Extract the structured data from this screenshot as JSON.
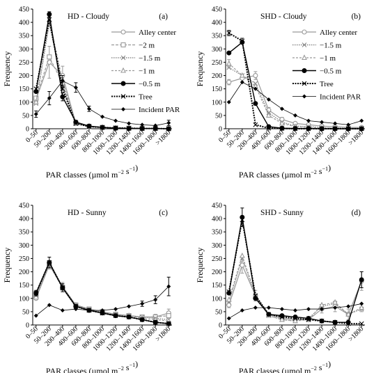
{
  "figure": {
    "xlabel_main": "PAR classes (µmol m",
    "xlabel_sup1": "−2",
    "xlabel_mid": " s",
    "xlabel_sup2": "−1",
    "xlabel_end": ")",
    "ylabel": "Frequency"
  },
  "categories": [
    "0–50",
    "50–200",
    "200–400",
    "400–600",
    "600–800",
    "800–1000",
    "1000–1200",
    "1200–1400",
    "1400–1600",
    "1600–1800",
    ">1800"
  ],
  "yticks": [
    "0",
    "50",
    "100",
    "150",
    "200",
    "250",
    "300",
    "350",
    "400",
    "450"
  ],
  "series_styles": {
    "alley": {
      "color": "#999999",
      "dash": "",
      "marker": "circle-open",
      "width": 1.2
    },
    "m2": {
      "color": "#999999",
      "dash": "4,2",
      "marker": "square-open",
      "width": 1.2
    },
    "m15": {
      "color": "#888888",
      "dash": "1.5,1.5",
      "marker": "x",
      "width": 1.4
    },
    "m1": {
      "color": "#999999",
      "dash": "3,2",
      "marker": "triangle-open",
      "width": 1.2
    },
    "m05": {
      "color": "#000000",
      "dash": "",
      "marker": "circle-filled",
      "width": 1.4
    },
    "tree": {
      "color": "#000000",
      "dash": "2,1.5",
      "marker": "x",
      "width": 2.0
    },
    "incident": {
      "color": "#000000",
      "dash": "",
      "marker": "diamond-filled",
      "width": 0.8
    }
  },
  "chart_data": [
    {
      "type": "line",
      "title": "HD - Cloudy",
      "letter": "(a)",
      "ylabel": "Frequency",
      "xlabel": "PAR classes (µmol m−2 s−1)",
      "ylim": [
        0,
        450
      ],
      "legend": {
        "placement": "right",
        "entries": [
          {
            "key": "alley",
            "label": "Alley center"
          },
          {
            "key": "m2",
            "label": "−2 m"
          },
          {
            "key": "m15",
            "label": "−1.5 m"
          },
          {
            "key": "m1",
            "label": "−1 m"
          },
          {
            "key": "m05",
            "label": "−0.5 m"
          },
          {
            "key": "tree",
            "label": "Tree"
          },
          {
            "key": "incident",
            "label": "Incident PAR"
          }
        ]
      },
      "series": [
        {
          "key": "alley",
          "values": [
            110,
            250,
            200,
            20,
            8,
            5,
            3,
            2,
            1,
            1,
            0
          ],
          "errors": [
            0,
            60,
            35,
            0,
            0,
            0,
            0,
            0,
            0,
            0,
            0
          ]
        },
        {
          "key": "m2",
          "values": [
            115,
            270,
            170,
            20,
            8,
            5,
            3,
            2,
            1,
            1,
            0
          ],
          "errors": [
            0,
            0,
            0,
            0,
            0,
            0,
            0,
            0,
            0,
            0,
            0
          ]
        },
        {
          "key": "m15",
          "values": [
            95,
            395,
            160,
            25,
            10,
            5,
            3,
            2,
            1,
            1,
            0
          ],
          "errors": [
            0,
            0,
            0,
            0,
            0,
            0,
            0,
            0,
            0,
            0,
            0
          ]
        },
        {
          "key": "m1",
          "values": [
            100,
            410,
            180,
            22,
            8,
            5,
            3,
            2,
            1,
            1,
            0
          ],
          "errors": [
            0,
            0,
            0,
            0,
            0,
            0,
            0,
            0,
            0,
            0,
            0
          ]
        },
        {
          "key": "m05",
          "values": [
            140,
            430,
            120,
            25,
            10,
            5,
            2,
            1,
            1,
            1,
            0
          ],
          "errors": [
            0,
            10,
            15,
            0,
            0,
            0,
            0,
            0,
            0,
            0,
            0
          ]
        },
        {
          "key": "tree",
          "values": [
            150,
            410,
            150,
            20,
            8,
            5,
            3,
            2,
            1,
            1,
            0
          ],
          "errors": [
            0,
            0,
            0,
            0,
            0,
            0,
            0,
            0,
            0,
            0,
            0
          ]
        },
        {
          "key": "incident",
          "values": [
            55,
            115,
            180,
            155,
            75,
            45,
            30,
            20,
            15,
            12,
            22
          ],
          "errors": [
            12,
            25,
            20,
            18,
            10,
            0,
            0,
            0,
            0,
            0,
            10
          ]
        }
      ]
    },
    {
      "type": "line",
      "title": "SHD - Cloudy",
      "letter": "(b)",
      "ylabel": "Frequency",
      "xlabel": "PAR classes (µmol m−2 s−1)",
      "ylim": [
        0,
        450
      ],
      "legend": {
        "placement": "right",
        "entries": [
          {
            "key": "alley",
            "label": "Alley center"
          },
          {
            "key": "m15",
            "label": "−1.5 m"
          },
          {
            "key": "m1",
            "label": "−1 m"
          },
          {
            "key": "m05",
            "label": "−0.5 m"
          },
          {
            "key": "tree",
            "label": "Tree"
          },
          {
            "key": "incident",
            "label": "Incident PAR"
          }
        ]
      },
      "series": [
        {
          "key": "alley",
          "values": [
            175,
            190,
            200,
            70,
            35,
            20,
            15,
            10,
            8,
            5,
            5
          ],
          "errors": [
            10,
            15,
            15,
            10,
            8,
            0,
            0,
            0,
            0,
            0,
            0
          ]
        },
        {
          "key": "m15",
          "values": [
            230,
            200,
            170,
            60,
            25,
            10,
            8,
            5,
            3,
            2,
            2
          ],
          "errors": [
            0,
            0,
            0,
            0,
            0,
            0,
            0,
            0,
            0,
            0,
            0
          ]
        },
        {
          "key": "m1",
          "values": [
            245,
            200,
            160,
            50,
            20,
            8,
            5,
            3,
            2,
            1,
            1
          ],
          "errors": [
            15,
            0,
            0,
            0,
            0,
            0,
            0,
            0,
            0,
            0,
            0
          ]
        },
        {
          "key": "m05",
          "values": [
            285,
            325,
            95,
            8,
            2,
            1,
            1,
            0,
            0,
            0,
            0
          ],
          "errors": [
            0,
            0,
            0,
            0,
            0,
            0,
            0,
            0,
            0,
            0,
            0
          ]
        },
        {
          "key": "tree",
          "values": [
            360,
            330,
            15,
            2,
            1,
            0,
            0,
            0,
            0,
            0,
            0
          ],
          "errors": [
            10,
            10,
            0,
            0,
            0,
            0,
            0,
            0,
            0,
            0,
            0
          ]
        },
        {
          "key": "incident",
          "values": [
            100,
            175,
            150,
            110,
            75,
            50,
            30,
            25,
            20,
            15,
            30
          ],
          "errors": [
            0,
            0,
            0,
            0,
            0,
            0,
            0,
            0,
            0,
            0,
            0
          ]
        }
      ]
    },
    {
      "type": "line",
      "title": "HD - Sunny",
      "letter": "(c)",
      "ylabel": "Frequency",
      "xlabel": "PAR classes (µmol m−2 s−1)",
      "ylim": [
        0,
        450
      ],
      "legend": null,
      "series": [
        {
          "key": "alley",
          "values": [
            100,
            225,
            145,
            75,
            60,
            50,
            40,
            35,
            30,
            30,
            45
          ],
          "errors": [
            0,
            15,
            15,
            0,
            0,
            0,
            0,
            0,
            0,
            10,
            15
          ]
        },
        {
          "key": "m2",
          "values": [
            105,
            225,
            140,
            75,
            60,
            50,
            40,
            35,
            30,
            30,
            35
          ],
          "errors": [
            0,
            0,
            0,
            0,
            0,
            0,
            0,
            0,
            0,
            0,
            0
          ]
        },
        {
          "key": "m15",
          "values": [
            110,
            230,
            140,
            75,
            60,
            45,
            40,
            35,
            30,
            25,
            20
          ],
          "errors": [
            0,
            0,
            0,
            0,
            0,
            0,
            0,
            0,
            0,
            0,
            0
          ]
        },
        {
          "key": "m1",
          "values": [
            115,
            230,
            140,
            75,
            55,
            45,
            40,
            35,
            25,
            20,
            15
          ],
          "errors": [
            0,
            0,
            0,
            0,
            0,
            0,
            0,
            0,
            0,
            0,
            0
          ]
        },
        {
          "key": "m05",
          "values": [
            120,
            235,
            140,
            70,
            55,
            45,
            35,
            30,
            20,
            10,
            5
          ],
          "errors": [
            10,
            20,
            15,
            0,
            0,
            0,
            0,
            0,
            0,
            0,
            0
          ]
        },
        {
          "key": "tree",
          "values": [
            120,
            235,
            140,
            70,
            55,
            45,
            35,
            30,
            20,
            10,
            5
          ],
          "errors": [
            0,
            0,
            0,
            0,
            0,
            0,
            0,
            0,
            0,
            0,
            0
          ]
        },
        {
          "key": "incident",
          "values": [
            35,
            75,
            55,
            60,
            55,
            55,
            60,
            70,
            80,
            95,
            145
          ],
          "errors": [
            0,
            0,
            0,
            0,
            0,
            0,
            0,
            0,
            10,
            15,
            35
          ]
        }
      ]
    },
    {
      "type": "line",
      "title": "SHD - Sunny",
      "letter": "(d)",
      "ylabel": "Frequency",
      "xlabel": "PAR classes (µmol m−2 s−1)",
      "ylim": [
        0,
        450
      ],
      "legend": null,
      "series": [
        {
          "key": "alley",
          "values": [
            75,
            225,
            110,
            40,
            25,
            20,
            20,
            60,
            70,
            40,
            165
          ],
          "errors": [
            10,
            30,
            20,
            0,
            0,
            0,
            0,
            15,
            20,
            20,
            35
          ]
        },
        {
          "key": "m15",
          "values": [
            85,
            250,
            110,
            35,
            20,
            15,
            25,
            70,
            80,
            40,
            60
          ],
          "errors": [
            0,
            0,
            0,
            0,
            0,
            0,
            0,
            0,
            0,
            0,
            0
          ]
        },
        {
          "key": "m1",
          "values": [
            95,
            260,
            115,
            35,
            20,
            15,
            20,
            75,
            85,
            40,
            65
          ],
          "errors": [
            0,
            0,
            0,
            0,
            0,
            0,
            0,
            0,
            0,
            0,
            15
          ]
        },
        {
          "key": "m05",
          "values": [
            120,
            405,
            100,
            40,
            35,
            30,
            25,
            15,
            10,
            10,
            170
          ],
          "errors": [
            0,
            35,
            0,
            0,
            0,
            0,
            0,
            0,
            0,
            0,
            30
          ]
        },
        {
          "key": "tree",
          "values": [
            125,
            395,
            110,
            40,
            30,
            25,
            20,
            15,
            10,
            5,
            5
          ],
          "errors": [
            0,
            0,
            0,
            0,
            0,
            0,
            0,
            0,
            0,
            0,
            0
          ]
        },
        {
          "key": "incident",
          "values": [
            25,
            55,
            65,
            65,
            60,
            55,
            60,
            60,
            65,
            70,
            80
          ],
          "errors": [
            0,
            0,
            0,
            0,
            0,
            0,
            0,
            0,
            0,
            0,
            0
          ]
        }
      ]
    }
  ]
}
